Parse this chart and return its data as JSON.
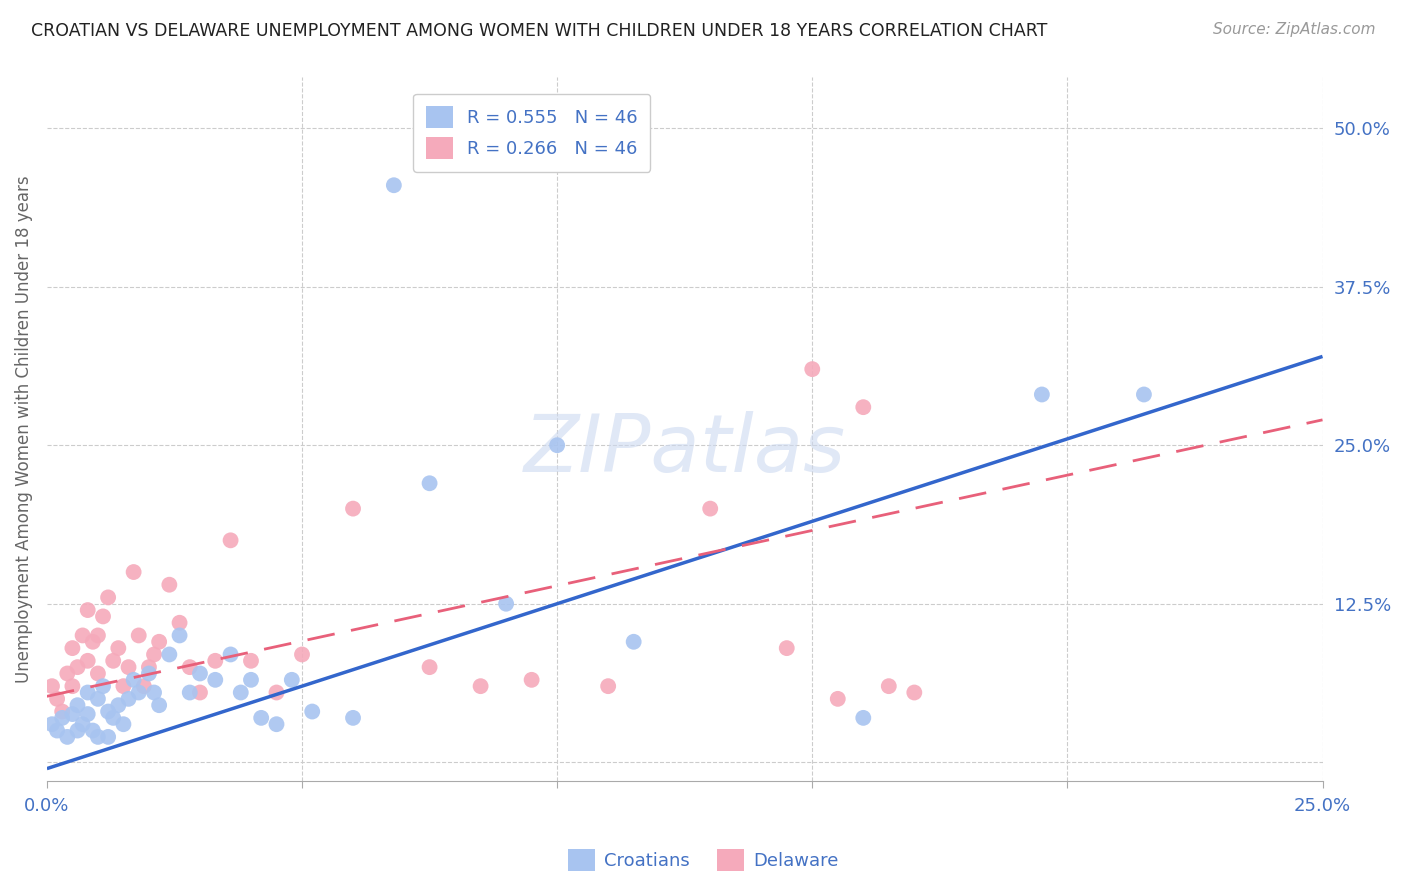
{
  "title": "CROATIAN VS DELAWARE UNEMPLOYMENT AMONG WOMEN WITH CHILDREN UNDER 18 YEARS CORRELATION CHART",
  "source": "Source: ZipAtlas.com",
  "ylabel": "Unemployment Among Women with Children Under 18 years",
  "xlabel": "",
  "watermark": "ZIPatlas",
  "xlim": [
    0.0,
    0.25
  ],
  "ylim": [
    -0.015,
    0.54
  ],
  "blue_R": 0.555,
  "blue_N": 46,
  "pink_R": 0.266,
  "pink_N": 46,
  "blue_color": "#a8c4f0",
  "pink_color": "#f5aabb",
  "blue_line_color": "#3366cc",
  "pink_line_color": "#e8607a",
  "blue_line_x0": 0.0,
  "blue_line_y0": -0.005,
  "blue_line_x1": 0.25,
  "blue_line_y1": 0.32,
  "pink_line_x0": 0.0,
  "pink_line_y0": 0.052,
  "pink_line_x1": 0.25,
  "pink_line_y1": 0.27,
  "blue_scatter_x": [
    0.001,
    0.002,
    0.003,
    0.004,
    0.005,
    0.006,
    0.006,
    0.007,
    0.008,
    0.008,
    0.009,
    0.01,
    0.01,
    0.011,
    0.012,
    0.012,
    0.013,
    0.014,
    0.015,
    0.016,
    0.017,
    0.018,
    0.02,
    0.021,
    0.022,
    0.024,
    0.026,
    0.028,
    0.03,
    0.033,
    0.036,
    0.038,
    0.04,
    0.042,
    0.045,
    0.048,
    0.052,
    0.06,
    0.068,
    0.075,
    0.09,
    0.1,
    0.115,
    0.16,
    0.195,
    0.215
  ],
  "blue_scatter_y": [
    0.03,
    0.025,
    0.035,
    0.02,
    0.038,
    0.025,
    0.045,
    0.03,
    0.038,
    0.055,
    0.025,
    0.05,
    0.02,
    0.06,
    0.04,
    0.02,
    0.035,
    0.045,
    0.03,
    0.05,
    0.065,
    0.055,
    0.07,
    0.055,
    0.045,
    0.085,
    0.1,
    0.055,
    0.07,
    0.065,
    0.085,
    0.055,
    0.065,
    0.035,
    0.03,
    0.065,
    0.04,
    0.035,
    0.455,
    0.22,
    0.125,
    0.25,
    0.095,
    0.035,
    0.29,
    0.29
  ],
  "pink_scatter_x": [
    0.001,
    0.002,
    0.003,
    0.004,
    0.005,
    0.005,
    0.006,
    0.007,
    0.008,
    0.008,
    0.009,
    0.01,
    0.01,
    0.011,
    0.012,
    0.013,
    0.014,
    0.015,
    0.016,
    0.017,
    0.018,
    0.019,
    0.02,
    0.021,
    0.022,
    0.024,
    0.026,
    0.028,
    0.03,
    0.033,
    0.036,
    0.04,
    0.045,
    0.05,
    0.06,
    0.075,
    0.085,
    0.095,
    0.11,
    0.13,
    0.145,
    0.15,
    0.155,
    0.16,
    0.165,
    0.17
  ],
  "pink_scatter_y": [
    0.06,
    0.05,
    0.04,
    0.07,
    0.06,
    0.09,
    0.075,
    0.1,
    0.12,
    0.08,
    0.095,
    0.07,
    0.1,
    0.115,
    0.13,
    0.08,
    0.09,
    0.06,
    0.075,
    0.15,
    0.1,
    0.06,
    0.075,
    0.085,
    0.095,
    0.14,
    0.11,
    0.075,
    0.055,
    0.08,
    0.175,
    0.08,
    0.055,
    0.085,
    0.2,
    0.075,
    0.06,
    0.065,
    0.06,
    0.2,
    0.09,
    0.31,
    0.05,
    0.28,
    0.06,
    0.055
  ]
}
